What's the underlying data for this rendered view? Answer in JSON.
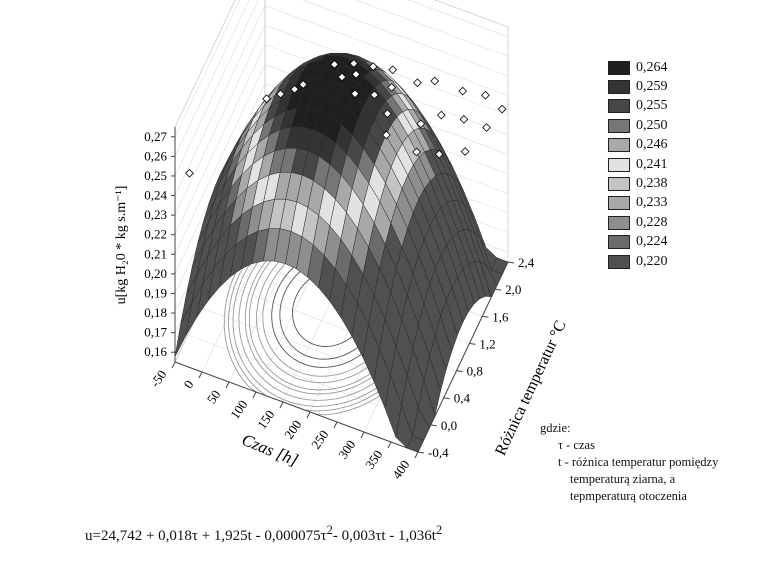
{
  "chart_data": {
    "type": "surface",
    "zlabel": "u[kg H₂0 * kg s.m⁻¹]",
    "xlabel": "Czas  [h]",
    "ylabel": "Różnica temperatur °C",
    "x_ticks": [
      "-50",
      "0",
      "50",
      "100",
      "150",
      "200",
      "250",
      "300",
      "350",
      "400"
    ],
    "y_ticks": [
      "-0,4",
      "0,0",
      "0,4",
      "0,8",
      "1,2",
      "1,6",
      "2,0",
      "2,4"
    ],
    "z_ticks": [
      "0,16",
      "0,17",
      "0,18",
      "0,19",
      "0,20",
      "0,21",
      "0,22",
      "0,23",
      "0,24",
      "0,25",
      "0,26",
      "0,27"
    ],
    "xlim": [
      -50,
      400
    ],
    "ylim": [
      -0.4,
      2.4
    ],
    "zlim": [
      0.155,
      0.275
    ],
    "legend": {
      "items": [
        {
          "label": "0,264",
          "color": "#1f1f1f"
        },
        {
          "label": "0,259",
          "color": "#333333"
        },
        {
          "label": "0,255",
          "color": "#474747"
        },
        {
          "label": "0,250",
          "color": "#767676"
        },
        {
          "label": "0,246",
          "color": "#a8a8a8"
        },
        {
          "label": "0,241",
          "color": "#e2e2e2"
        },
        {
          "label": "0,238",
          "color": "#c4c4c4"
        },
        {
          "label": "0,233",
          "color": "#a9a9a9"
        },
        {
          "label": "0,228",
          "color": "#8e8e8e"
        },
        {
          "label": "0,224",
          "color": "#6b6b6b"
        },
        {
          "label": "0,220",
          "color": "#505050"
        }
      ]
    },
    "points": [
      {
        "x": -35,
        "y": -0.2,
        "z": 0.246
      },
      {
        "x": 60,
        "y": 0.6,
        "z": 0.266
      },
      {
        "x": 80,
        "y": 0.7,
        "z": 0.267
      },
      {
        "x": 100,
        "y": 0.8,
        "z": 0.268
      },
      {
        "x": 110,
        "y": 0.9,
        "z": 0.268
      },
      {
        "x": 150,
        "y": 1.2,
        "z": 0.272
      },
      {
        "x": 170,
        "y": 1.1,
        "z": 0.271
      },
      {
        "x": 180,
        "y": 1.3,
        "z": 0.272
      },
      {
        "x": 190,
        "y": 1.2,
        "z": 0.271
      },
      {
        "x": 200,
        "y": 1.0,
        "z": 0.269
      },
      {
        "x": 210,
        "y": 1.4,
        "z": 0.27
      },
      {
        "x": 230,
        "y": 1.1,
        "z": 0.268
      },
      {
        "x": 240,
        "y": 1.5,
        "z": 0.268
      },
      {
        "x": 250,
        "y": 1.3,
        "z": 0.267
      },
      {
        "x": 260,
        "y": 1.0,
        "z": 0.265
      },
      {
        "x": 270,
        "y": 0.8,
        "z": 0.262
      },
      {
        "x": 280,
        "y": 1.6,
        "z": 0.262
      },
      {
        "x": 300,
        "y": 1.8,
        "z": 0.258
      },
      {
        "x": 310,
        "y": 1.2,
        "z": 0.258
      },
      {
        "x": 320,
        "y": 0.9,
        "z": 0.255
      },
      {
        "x": 330,
        "y": 1.5,
        "z": 0.254
      },
      {
        "x": 340,
        "y": 2.0,
        "z": 0.25
      },
      {
        "x": 350,
        "y": 1.1,
        "z": 0.25
      },
      {
        "x": 360,
        "y": 1.7,
        "z": 0.248
      },
      {
        "x": 370,
        "y": 2.2,
        "z": 0.244
      },
      {
        "x": 380,
        "y": 1.4,
        "z": 0.244
      },
      {
        "x": 390,
        "y": 1.9,
        "z": 0.24
      },
      {
        "x": 395,
        "y": 2.3,
        "z": 0.236
      }
    ]
  },
  "note": {
    "heading": "gdzie:",
    "line1": "τ - czas",
    "line2": "t - różnica temperatur pomiędzy",
    "line3": "temperaturą ziarna, a",
    "line4": "tepmperaturą otoczenia"
  },
  "equation": {
    "main": "u=24,742 + 0,018τ + 1,925t - 0,000075τ",
    "exp1": "2",
    "mid": "- 0,003τt - 1,036t",
    "exp2": "2"
  }
}
